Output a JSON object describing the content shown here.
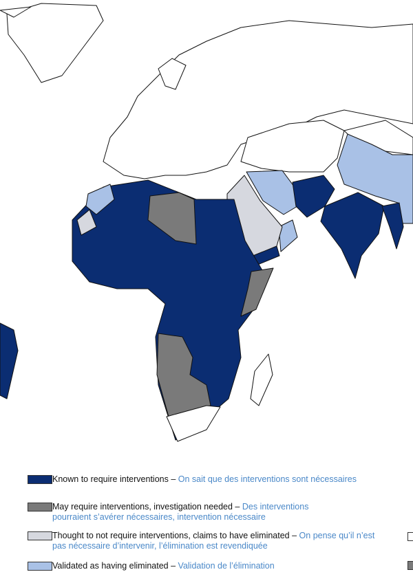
{
  "legend": {
    "items": [
      {
        "label": "Known to require interventions –",
        "translation": "On sait que des interventions sont nécessaires"
      },
      {
        "label": "May require interventions, investigation needed –",
        "translation": "Des interventions pourraient s’avérer nécessaires, intervention nécessaire"
      },
      {
        "label": "Thought to not require interventions, claims to have eliminated –",
        "translation": "On pense qu’il n’est pas nécessaire d’intervenir, l’élimination est revendiquée"
      },
      {
        "label": "Validated as having eliminated –",
        "translation": "Validation de l’élimination"
      }
    ]
  }
}
